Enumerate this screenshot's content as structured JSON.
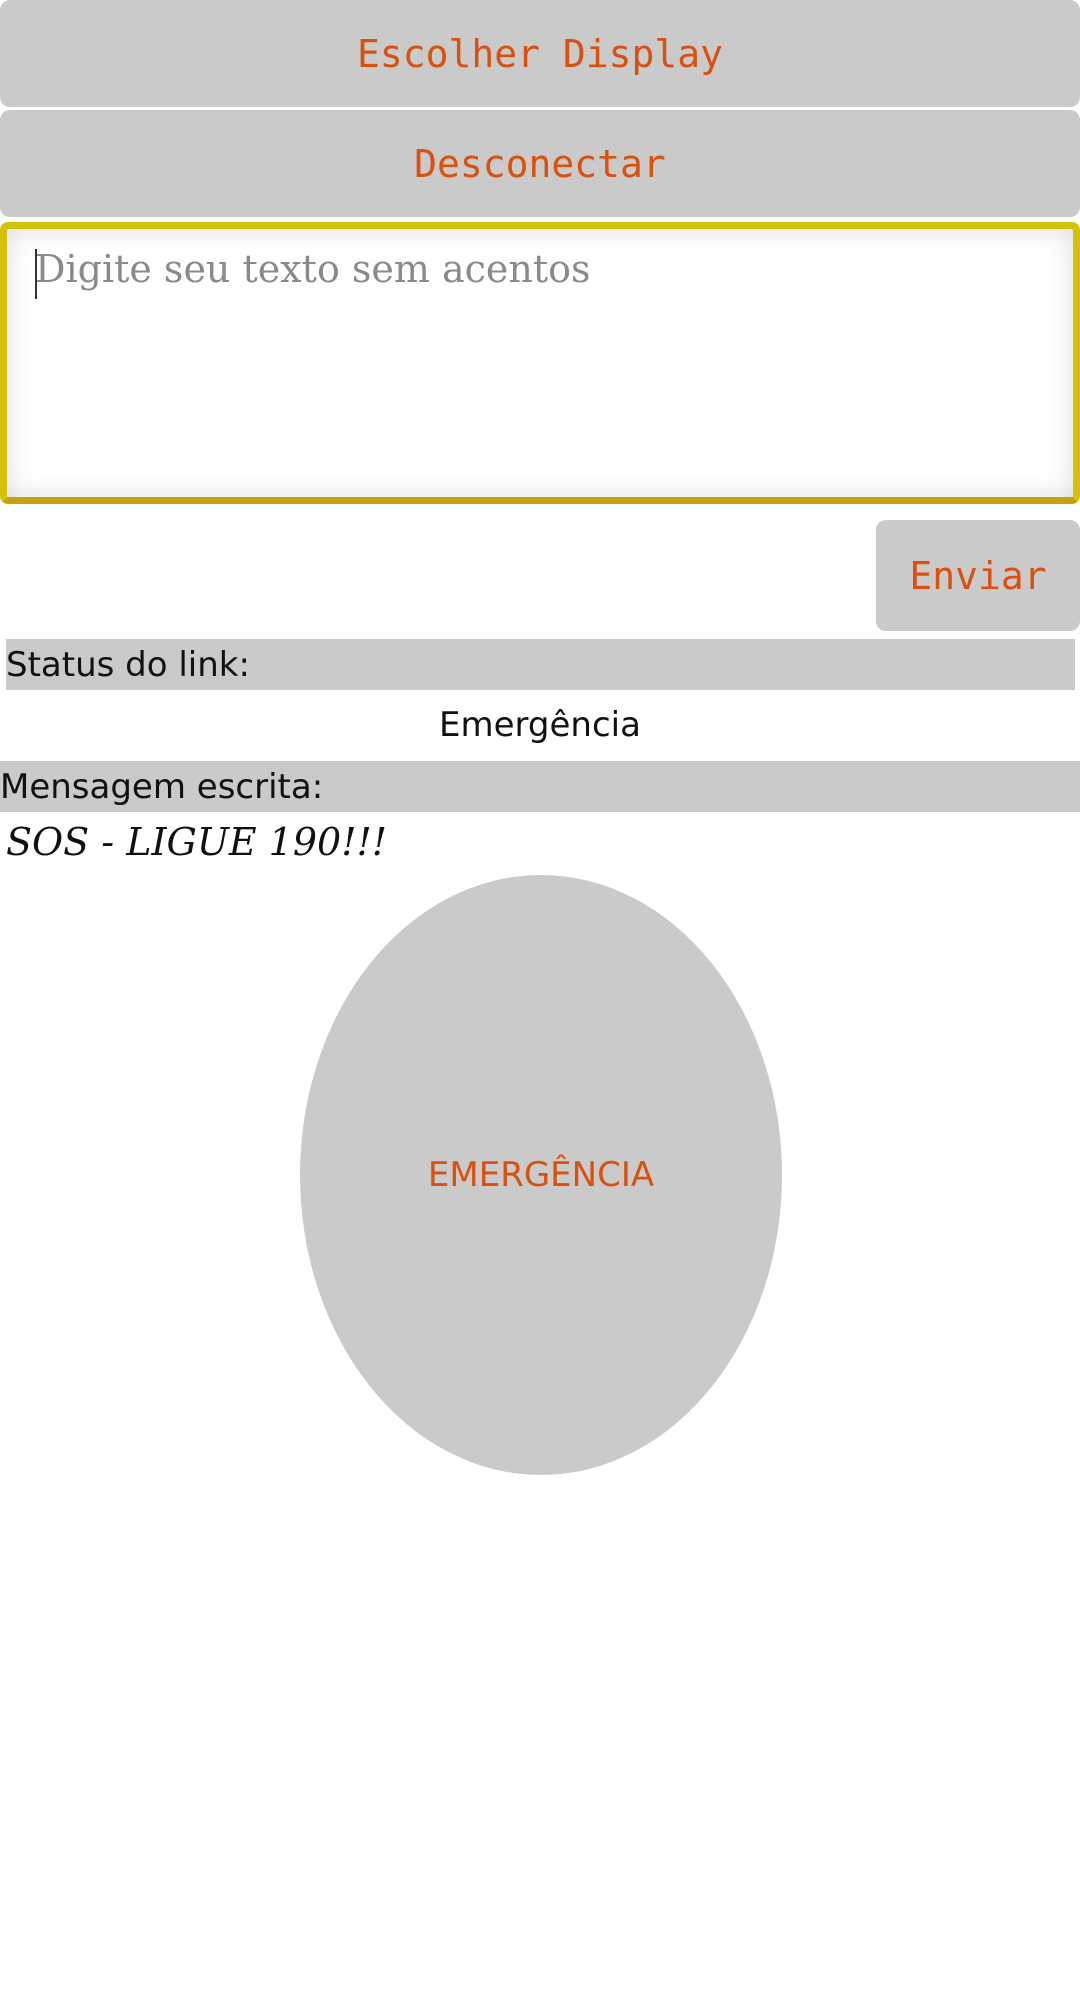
{
  "buttons": {
    "choose_display": "Escolher Display",
    "disconnect": "Desconectar",
    "send": "Enviar",
    "emergency": "EMERGÊNCIA"
  },
  "text_input": {
    "placeholder": "Digite seu texto sem acentos",
    "value": ""
  },
  "status": {
    "label": "Status do link:",
    "value": "Emergência"
  },
  "message": {
    "label": "Mensagem escrita:",
    "value": "SOS - LIGUE 190!!!"
  },
  "colors": {
    "button_bg": "#cacaca",
    "button_text": "#d9500f",
    "input_border": "#d4c10a"
  }
}
